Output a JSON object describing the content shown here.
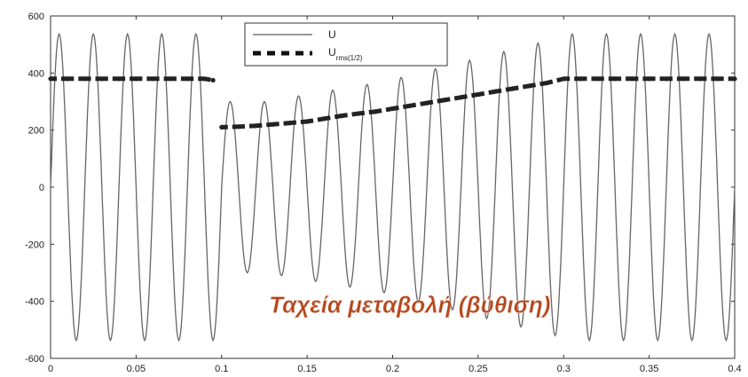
{
  "chart_data": {
    "type": "line",
    "title": "",
    "xlabel": "",
    "ylabel": "",
    "xlim": [
      0,
      0.4
    ],
    "ylim": [
      -600,
      600
    ],
    "x_ticks": [
      0,
      0.05,
      0.1,
      0.15,
      0.2,
      0.25,
      0.3,
      0.35,
      0.4
    ],
    "x_tick_labels": [
      "0",
      "0.05",
      "0.1",
      "0.15",
      "0.2",
      "0.25",
      "0.3",
      "0.35",
      "0.4"
    ],
    "y_ticks": [
      600,
      400,
      200,
      0,
      -200,
      -400,
      -600
    ],
    "y_tick_labels": [
      "600",
      "400",
      "200",
      "0",
      "-200",
      "-400",
      "-600"
    ],
    "grid": false,
    "legend_position": "top-center",
    "series": [
      {
        "name": "U",
        "style": "solid",
        "color": "#666666",
        "x": [
          0,
          0.005,
          0.01,
          0.015,
          0.02,
          0.025,
          0.03,
          0.035,
          0.04,
          0.045,
          0.05,
          0.055,
          0.06,
          0.065,
          0.07,
          0.075,
          0.08,
          0.085,
          0.09,
          0.095,
          0.1,
          0.105,
          0.11,
          0.115,
          0.12,
          0.125,
          0.13,
          0.135,
          0.14,
          0.145,
          0.15,
          0.155,
          0.16,
          0.165,
          0.17,
          0.175,
          0.18,
          0.185,
          0.19,
          0.195,
          0.2,
          0.205,
          0.21,
          0.215,
          0.22,
          0.225,
          0.23,
          0.235,
          0.24,
          0.245,
          0.25,
          0.255,
          0.26,
          0.265,
          0.27,
          0.275,
          0.28,
          0.285,
          0.29,
          0.295,
          0.3,
          0.305,
          0.31,
          0.315,
          0.32,
          0.325,
          0.33,
          0.335,
          0.34,
          0.345,
          0.35,
          0.355,
          0.36,
          0.365,
          0.37,
          0.375,
          0.38,
          0.385,
          0.39,
          0.395,
          0.4
        ],
        "values": [
          0,
          537,
          0,
          -537,
          0,
          537,
          0,
          -537,
          0,
          537,
          0,
          -537,
          0,
          537,
          0,
          -537,
          0,
          537,
          0,
          -537,
          0,
          300,
          0,
          -300,
          0,
          300,
          0,
          -310,
          0,
          320,
          0,
          -330,
          0,
          340,
          0,
          -350,
          0,
          360,
          0,
          -370,
          0,
          385,
          0,
          -400,
          0,
          415,
          0,
          -430,
          0,
          445,
          0,
          -460,
          0,
          475,
          0,
          -490,
          0,
          505,
          0,
          -520,
          0,
          537,
          0,
          -537,
          0,
          537,
          0,
          -537,
          0,
          537,
          0,
          -537,
          0,
          537,
          0,
          -537,
          0,
          537,
          0,
          -537,
          0
        ]
      },
      {
        "name": "U",
        "name_subscript": "rms(1/2)",
        "style": "dashed",
        "color": "#222222",
        "x": [
          0,
          0.01,
          0.02,
          0.03,
          0.04,
          0.05,
          0.06,
          0.07,
          0.08,
          0.09,
          0.095,
          0.1,
          0.11,
          0.12,
          0.13,
          0.14,
          0.15,
          0.16,
          0.17,
          0.18,
          0.19,
          0.2,
          0.21,
          0.22,
          0.23,
          0.24,
          0.25,
          0.26,
          0.27,
          0.28,
          0.29,
          0.3,
          0.31,
          0.32,
          0.33,
          0.34,
          0.35,
          0.36,
          0.37,
          0.38,
          0.39,
          0.4
        ],
        "values": [
          380,
          380,
          380,
          380,
          380,
          380,
          380,
          380,
          380,
          380,
          375,
          210,
          212,
          215,
          220,
          225,
          230,
          240,
          250,
          258,
          265,
          275,
          285,
          295,
          305,
          315,
          325,
          335,
          345,
          355,
          365,
          380,
          380,
          380,
          380,
          380,
          380,
          380,
          380,
          380,
          380,
          380
        ]
      }
    ],
    "annotations": [
      {
        "text": "Ταχεία μεταβολή (βύθιση)",
        "x": 0.21,
        "y": -440,
        "color": "#b3471f"
      }
    ]
  }
}
